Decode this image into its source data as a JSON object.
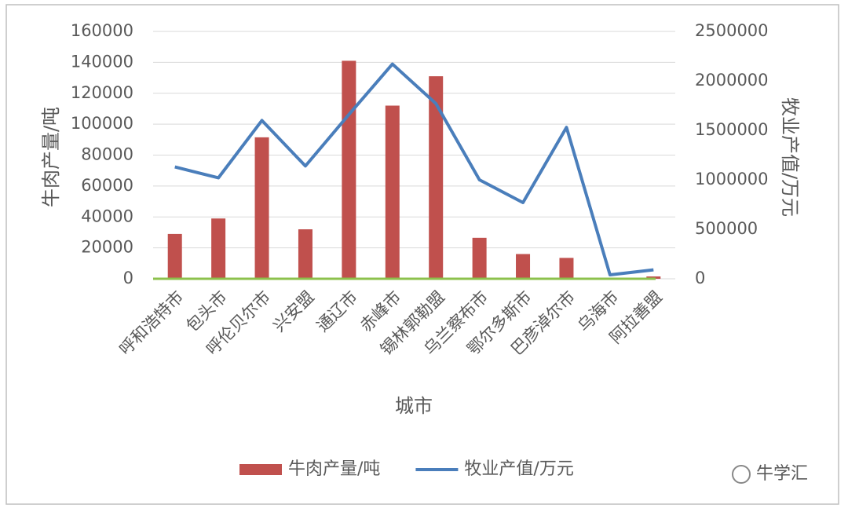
{
  "chart_data": {
    "type": "bar-line",
    "categories": [
      "呼和浩特市",
      "包头市",
      "呼伦贝尔市",
      "兴安盟",
      "通辽市",
      "赤峰市",
      "锡林郭勒盟",
      "乌兰察布市",
      "鄂尔多斯市",
      "巴彦淖尔市",
      "乌海市",
      "阿拉善盟"
    ],
    "x_label": "城市",
    "y_label": "牛肉产量/吨",
    "y2_label": "牧业产值/万元",
    "ylim": [
      0,
      160000
    ],
    "yticks": [
      0,
      20000,
      40000,
      60000,
      80000,
      100000,
      120000,
      140000,
      160000
    ],
    "y2lim": [
      0,
      2500000
    ],
    "y2ticks": [
      0,
      500000,
      1000000,
      1500000,
      2000000,
      2500000
    ],
    "grid": true,
    "legend": "bottom",
    "series": [
      {
        "name": "牛肉产量/吨",
        "type": "bar",
        "color": "#c0504d",
        "values": [
          29000,
          39000,
          91500,
          32000,
          141000,
          112000,
          131000,
          26500,
          16000,
          13500,
          500,
          1500
        ]
      },
      {
        "name": "牧业产值/万元",
        "type": "line",
        "axis": "y2",
        "color": "#4a7ebb",
        "values": [
          1130000,
          1020000,
          1600000,
          1140000,
          1660000,
          2170000,
          1770000,
          1000000,
          770000,
          1530000,
          40000,
          90000
        ]
      }
    ]
  },
  "watermark": "牛学汇"
}
